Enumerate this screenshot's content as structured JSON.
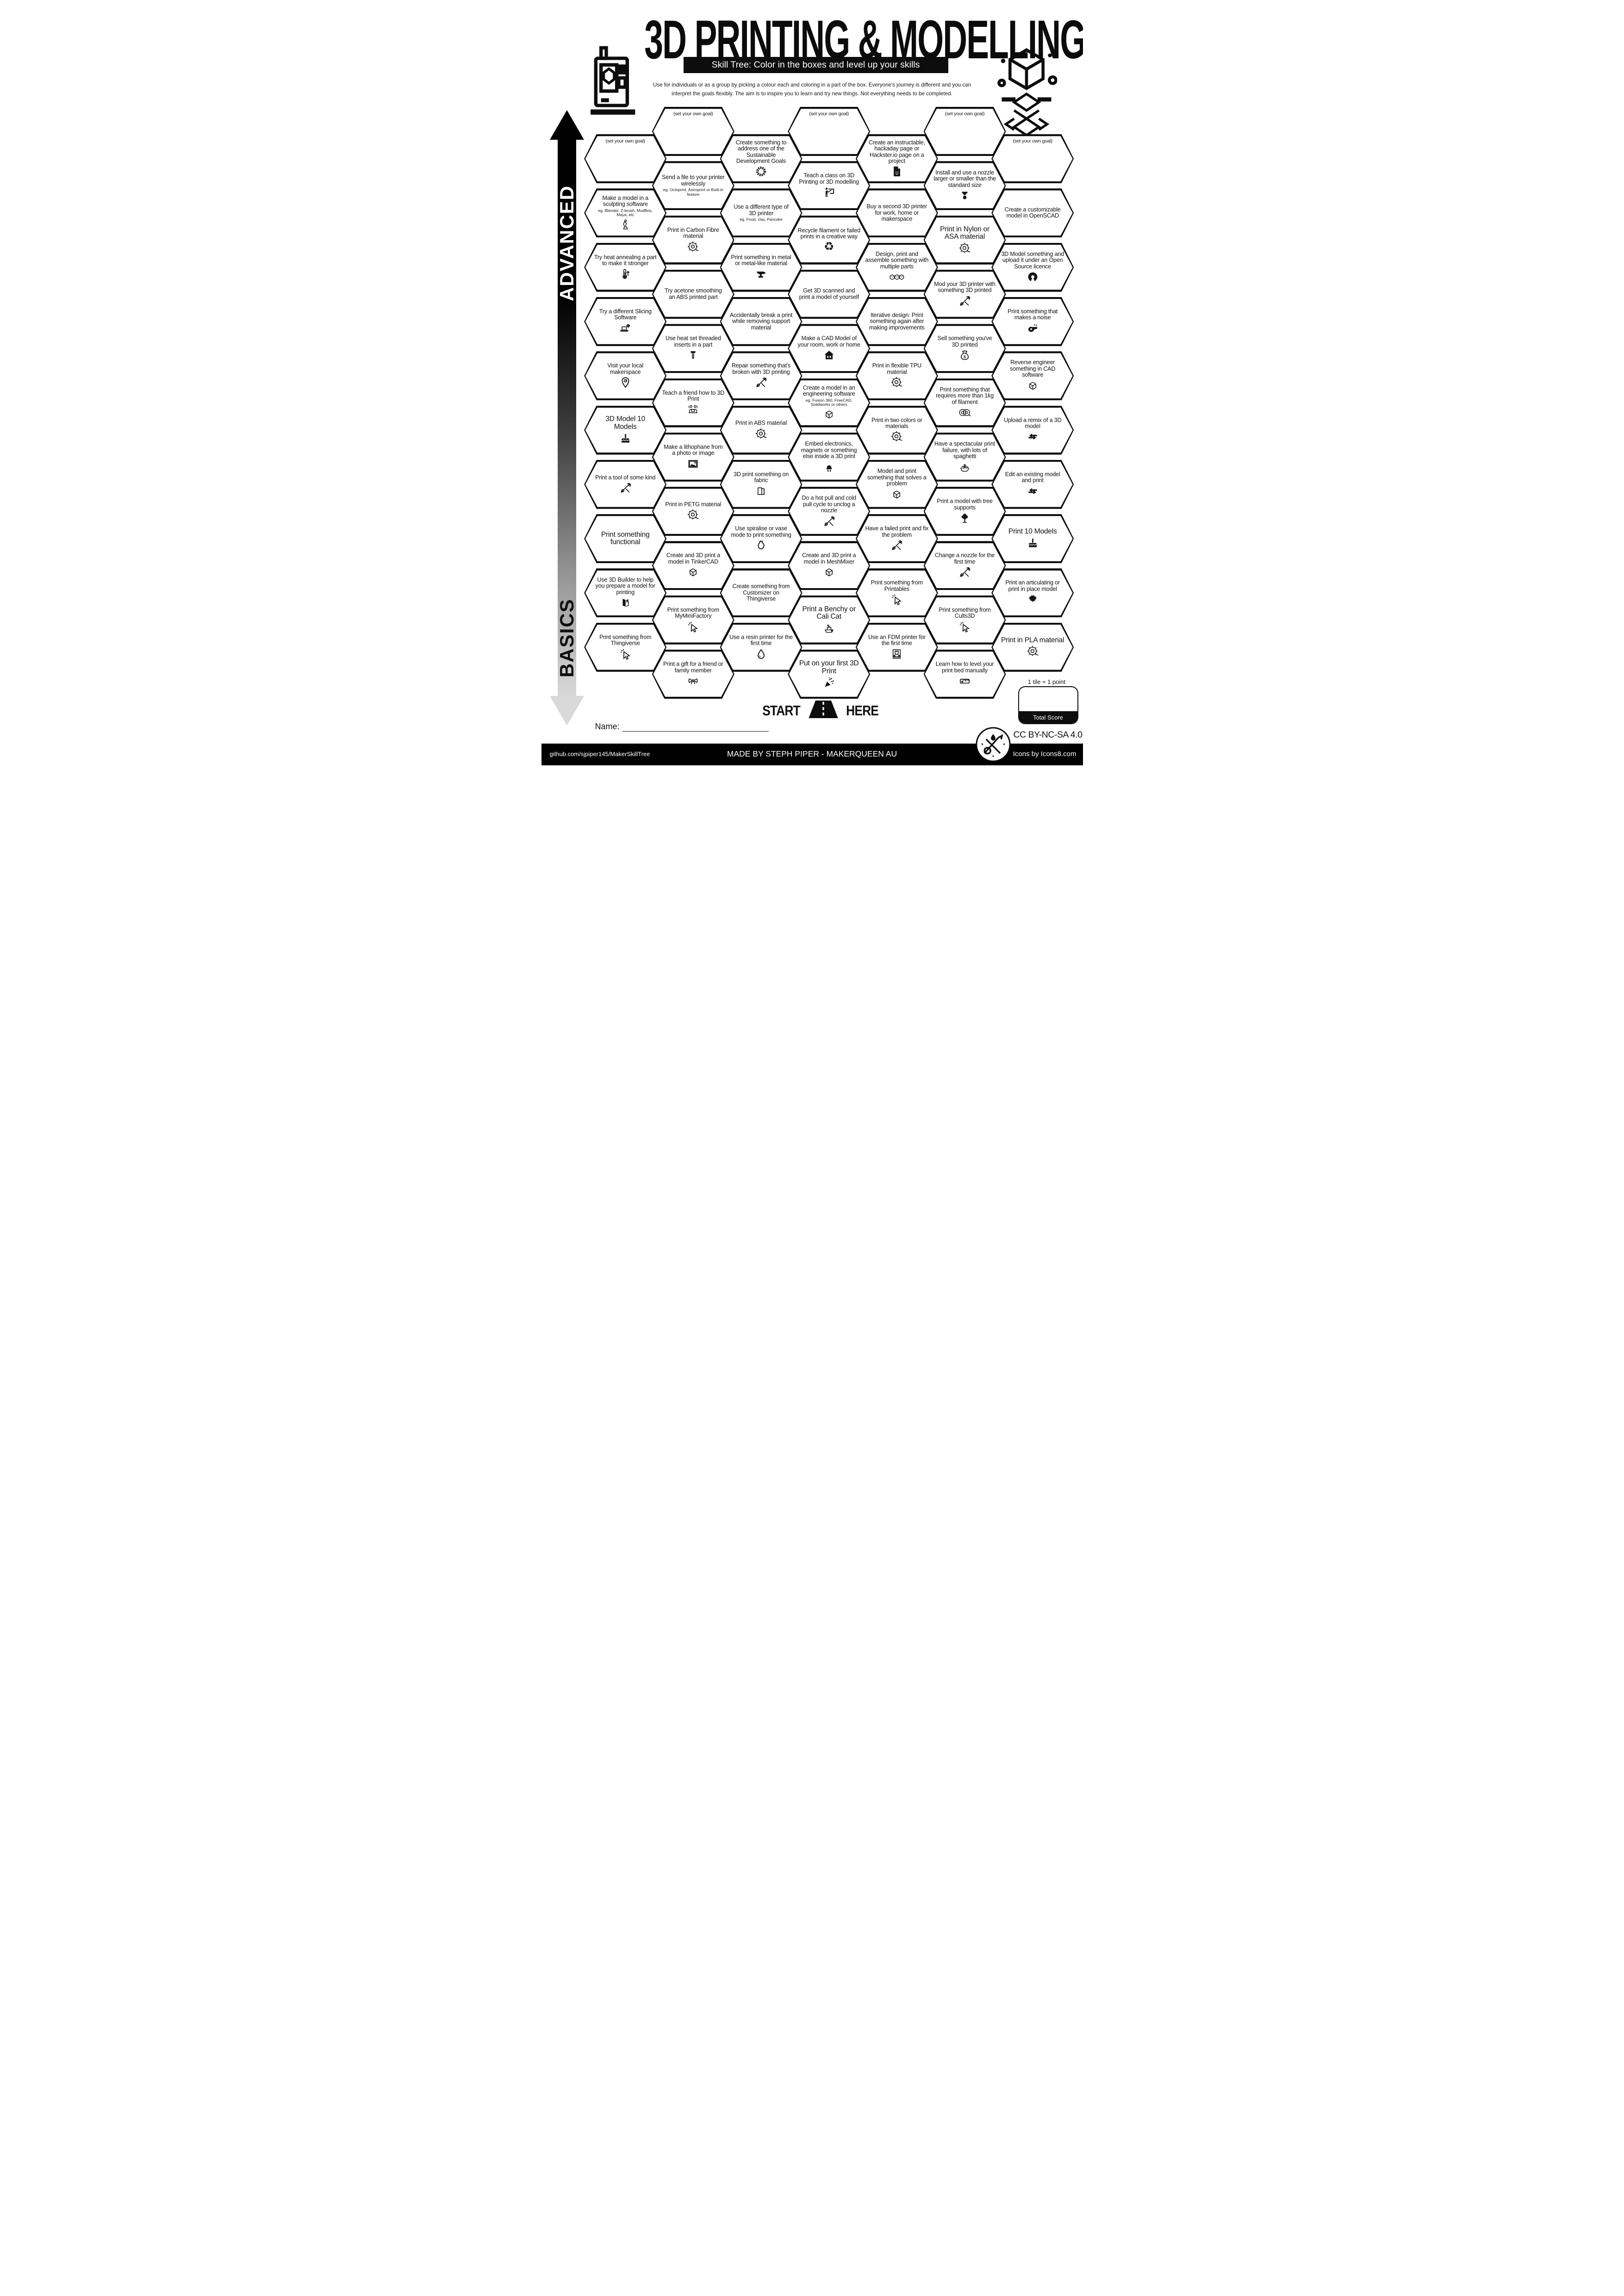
{
  "header": {
    "title": "3D PRINTING & MODELLING",
    "banner": "Skill Tree:  Color in the boxes and level up your skills",
    "description_line1": "Use for individuals or as a group by picking a colour each and coloring in a part of the box.  Everyone's journey is different and you can",
    "description_line2": "interpret the goals flexibly.  The aim is to inspire you to learn and try new things. Not everything needs to be completed."
  },
  "axis": {
    "top": "ADVANCED",
    "bottom": "BASICS"
  },
  "goal_label": "(set your own goal)",
  "start": {
    "left": "START",
    "right": "HERE"
  },
  "name_label": "Name:",
  "score": {
    "tile_note": "1 tile = 1 point",
    "total_label": "Total Score"
  },
  "license": "CC BY-NC-SA 4.0",
  "footer": {
    "left": "github.com/sjpiper145/MakerSkillTree",
    "center": "MADE BY STEPH PIPER  -  MAKERQUEEN AU",
    "right": "Icons by Icons8.com"
  },
  "colors": {
    "ink": "#0d0d0d",
    "paper": "#ffffff"
  },
  "hexes": [
    {
      "c": 1,
      "r": 0,
      "g": true
    },
    {
      "c": 1,
      "r": 1,
      "t": "Make a model in a sculpting software",
      "s": "eg. Blender, Z-brush, MudBox, Maya, etc",
      "i": "statue"
    },
    {
      "c": 1,
      "r": 2,
      "t": "Try heat annealing a part to make it stronger",
      "i": "thermometer"
    },
    {
      "c": 1,
      "r": 3,
      "t": "Try a different Slicing Software",
      "i": "laptop-gear"
    },
    {
      "c": 1,
      "r": 4,
      "t": "Visit your local makerspace",
      "i": "map-pin"
    },
    {
      "c": 1,
      "r": 5,
      "t": "3D Model 10 Models",
      "i": "cake",
      "lg": true
    },
    {
      "c": 1,
      "r": 6,
      "t": "Print a tool of some kind",
      "i": "tools"
    },
    {
      "c": 1,
      "r": 7,
      "t": "Print something functional",
      "lg": true
    },
    {
      "c": 1,
      "r": 8,
      "t": "Use 3D Builder to help you prepare a model for printing",
      "i": "3d-builder"
    },
    {
      "c": 1,
      "r": 9,
      "t": "Print something from Thingiverse",
      "i": "cursor"
    },
    {
      "c": 2,
      "r": 0,
      "g": true
    },
    {
      "c": 2,
      "r": 1,
      "t": "Send a file to your printer wirelessly",
      "s": "eg. Octoprint, Astroprint or Built-in feature"
    },
    {
      "c": 2,
      "r": 2,
      "t": "Print in Carbon Fibre material",
      "i": "spool"
    },
    {
      "c": 2,
      "r": 3,
      "t": "Try acetone smoothing an ABS printed part"
    },
    {
      "c": 2,
      "r": 4,
      "t": "Use heat set threaded inserts in a part",
      "i": "screw"
    },
    {
      "c": 2,
      "r": 5,
      "t": "Teach a friend how to 3D Print",
      "i": "teach-friend"
    },
    {
      "c": 2,
      "r": 6,
      "t": "Make a lithophane from a photo or image",
      "i": "picture"
    },
    {
      "c": 2,
      "r": 7,
      "t": "Print in PETG material",
      "i": "spool"
    },
    {
      "c": 2,
      "r": 8,
      "t": "Create and 3D print a model in TinkerCAD",
      "i": "cube"
    },
    {
      "c": 2,
      "r": 9,
      "t": "Print something from MyMiniFactory",
      "i": "cursor"
    },
    {
      "c": 2,
      "r": 10,
      "t": "Print a gift for a friend or family member",
      "i": "gift-bow"
    },
    {
      "c": 3,
      "r": 0,
      "t": "Create something to address one of the Sustainable Development Goals",
      "i": "sdg-wheel"
    },
    {
      "c": 3,
      "r": 1,
      "t": "Use a different type of 3D printer",
      "s": "eg. Food, clay, Pancake"
    },
    {
      "c": 3,
      "r": 2,
      "t": "Print something in metal or metal-like material",
      "i": "anvil"
    },
    {
      "c": 3,
      "r": 3,
      "t": "Accidentally break a print while removing support material"
    },
    {
      "c": 3,
      "r": 4,
      "t": "Repair something that's broken with 3D printing",
      "i": "tools"
    },
    {
      "c": 3,
      "r": 5,
      "t": "Print in ABS material",
      "i": "spool"
    },
    {
      "c": 3,
      "r": 6,
      "t": "3D print something on fabric",
      "i": "fabric"
    },
    {
      "c": 3,
      "r": 7,
      "t": "Use spiralise or vase mode to print something",
      "i": "vase"
    },
    {
      "c": 3,
      "r": 8,
      "t": "Create something from Customizer on Thingiverse"
    },
    {
      "c": 3,
      "r": 9,
      "t": "Use a resin printer for the first time",
      "i": "droplet"
    },
    {
      "c": 4,
      "r": 0,
      "g": true
    },
    {
      "c": 4,
      "r": 1,
      "t": "Teach a class on 3D Printing or 3D modelling",
      "i": "teacher"
    },
    {
      "c": 4,
      "r": 2,
      "t": "Recycle filament or failed prints in a creative way",
      "i": "recycle"
    },
    {
      "c": 4,
      "r": 3,
      "t": "Get 3D scanned and print a model of yourself"
    },
    {
      "c": 4,
      "r": 4,
      "t": "Make a CAD Model of your room, work or home",
      "i": "house"
    },
    {
      "c": 4,
      "r": 5,
      "t": "Create a model in an engineering software",
      "s": "eg. Fusion 360, FreeCAD, Solidworks or others",
      "i": "cube"
    },
    {
      "c": 4,
      "r": 6,
      "t": "Embed electronics, magnets or something else inside a 3D print",
      "i": "led"
    },
    {
      "c": 4,
      "r": 7,
      "t": "Do a hot pull and cold pull cycle to unclog a nozzle",
      "i": "tools"
    },
    {
      "c": 4,
      "r": 8,
      "t": "Create and 3D print a model in MeshMixer",
      "i": "cube"
    },
    {
      "c": 4,
      "r": 9,
      "t": "Print a Benchy or Cali Cat",
      "i": "benchy",
      "lg": true
    },
    {
      "c": 4,
      "r": 10,
      "t": "Put on your first 3D Print",
      "i": "party",
      "lg": true
    },
    {
      "c": 5,
      "r": 0,
      "t": "Create an instructable, hackaday page or Hackster.io page on a project",
      "i": "doc-smile"
    },
    {
      "c": 5,
      "r": 1,
      "t": "Buy a second 3D printer for work, home or makerspace"
    },
    {
      "c": 5,
      "r": 2,
      "t": "Design, print and assemble something with multiple parts",
      "i": "cubes"
    },
    {
      "c": 5,
      "r": 3,
      "t": "Iterative design: Print something again after making improvements"
    },
    {
      "c": 5,
      "r": 4,
      "t": "Print in flexible TPU material",
      "i": "spool"
    },
    {
      "c": 5,
      "r": 5,
      "t": "Print in two colors or materials",
      "i": "spool"
    },
    {
      "c": 5,
      "r": 6,
      "t": "Model and print something that solves a problem",
      "i": "cube"
    },
    {
      "c": 5,
      "r": 7,
      "t": "Have a failed print and fix the problem",
      "i": "tools"
    },
    {
      "c": 5,
      "r": 8,
      "t": "Print something from Printables",
      "i": "cursor"
    },
    {
      "c": 5,
      "r": 9,
      "t": "Use an FDM printer for the first time",
      "i": "printer"
    },
    {
      "c": 6,
      "r": 0,
      "g": true
    },
    {
      "c": 6,
      "r": 1,
      "t": "Install and use a nozzle larger or smaller than the standard size",
      "i": "nozzle"
    },
    {
      "c": 6,
      "r": 2,
      "t": "Print in Nylon or ASA material",
      "i": "spool",
      "lg": true
    },
    {
      "c": 6,
      "r": 3,
      "t": "Mod your 3D printer with something 3D printed",
      "i": "tools"
    },
    {
      "c": 6,
      "r": 4,
      "t": "Sell something you've 3D printed",
      "i": "money-bag"
    },
    {
      "c": 6,
      "r": 5,
      "t": "Print something that requires more than 1kg of filament",
      "i": "spools"
    },
    {
      "c": 6,
      "r": 6,
      "t": "Have a spectacular print failure, with lots of spaghetti",
      "i": "spaghetti"
    },
    {
      "c": 6,
      "r": 7,
      "t": "Print a model with tree supports",
      "i": "tree"
    },
    {
      "c": 6,
      "r": 8,
      "t": "Change a nozzle for the first time",
      "i": "tools"
    },
    {
      "c": 6,
      "r": 9,
      "t": "Print something from Cults3D",
      "i": "cursor"
    },
    {
      "c": 6,
      "r": 10,
      "t": "Learn how to level your print bed manually",
      "i": "ruler"
    },
    {
      "c": 7,
      "r": 0,
      "g": true
    },
    {
      "c": 7,
      "r": 1,
      "t": "Create a customizable model in OpenSCAD"
    },
    {
      "c": 7,
      "r": 2,
      "t": "3D Model something and upload it under an Open Source licence",
      "i": "open-source"
    },
    {
      "c": 7,
      "r": 3,
      "t": "Print something that makes a noise",
      "i": "whistle"
    },
    {
      "c": 7,
      "r": 4,
      "t": "Reverse engineer something in CAD software",
      "i": "cube"
    },
    {
      "c": 7,
      "r": 5,
      "t": "Upload a remix of a 3D model",
      "i": "remix"
    },
    {
      "c": 7,
      "r": 6,
      "t": "Edit an existing model and print",
      "i": "remix"
    },
    {
      "c": 7,
      "r": 7,
      "t": "Print 10 Models",
      "i": "cake",
      "lg": true
    },
    {
      "c": 7,
      "r": 8,
      "t": "Print an articulating or print in place model",
      "i": "dragon"
    },
    {
      "c": 7,
      "r": 9,
      "t": "Print in PLA material",
      "i": "spool",
      "lg": true
    }
  ]
}
